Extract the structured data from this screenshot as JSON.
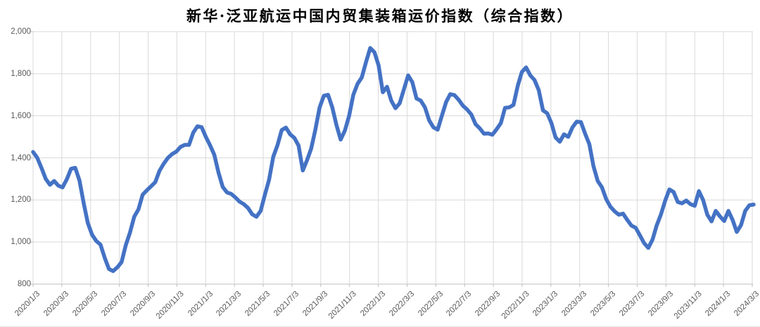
{
  "title": "新华·泛亚航运中国内贸集装箱运价指数（综合指数）",
  "colors": {
    "line": "#4472C4",
    "gridline": "#D9D9D9",
    "axis_line": "#BFBFBF",
    "tick_label": "#595959",
    "title_color": "#000000",
    "background": "#FFFFFF"
  },
  "chart_data": {
    "type": "line",
    "title": "新华·泛亚航运中国内贸集装箱运价指数（综合指数）",
    "xlabel": "",
    "ylabel": "",
    "ylim": [
      800,
      2000
    ],
    "y_ticks": [
      800,
      1000,
      1200,
      1400,
      1600,
      1800,
      2000
    ],
    "y_tick_labels": [
      "800",
      "1,000",
      "1,200",
      "1,400",
      "1,600",
      "1,800",
      "2,000"
    ],
    "x_tick_labels": [
      "2020/1/3",
      "2020/3/3",
      "2020/5/3",
      "2020/7/3",
      "2020/9/3",
      "2020/11/3",
      "2021/1/3",
      "2021/3/3",
      "2021/5/3",
      "2021/7/3",
      "2021/9/3",
      "2021/11/3",
      "2022/1/3",
      "2022/3/3",
      "2022/5/3",
      "2022/7/3",
      "2022/9/3",
      "2022/11/3",
      "2023/1/3",
      "2023/3/3",
      "2023/5/3",
      "2023/7/3",
      "2023/9/3",
      "2023/11/3",
      "2024/1/3",
      "2024/3/3"
    ],
    "grid": "both",
    "legend": "none",
    "series": [
      {
        "name": "综合指数",
        "color": "#4472C4",
        "sampling": "weekly index readings, 2020/1/3 through late 2024/3, uniformly spaced",
        "values": [
          1428,
          1400,
          1352,
          1300,
          1272,
          1290,
          1268,
          1260,
          1298,
          1348,
          1353,
          1293,
          1185,
          1090,
          1035,
          1005,
          988,
          925,
          872,
          862,
          880,
          905,
          985,
          1045,
          1120,
          1155,
          1225,
          1246,
          1265,
          1285,
          1338,
          1372,
          1400,
          1418,
          1430,
          1452,
          1462,
          1462,
          1520,
          1550,
          1546,
          1500,
          1460,
          1415,
          1330,
          1262,
          1236,
          1229,
          1212,
          1192,
          1180,
          1162,
          1132,
          1120,
          1148,
          1225,
          1295,
          1405,
          1460,
          1532,
          1544,
          1512,
          1495,
          1458,
          1340,
          1388,
          1444,
          1535,
          1640,
          1695,
          1700,
          1640,
          1555,
          1487,
          1530,
          1600,
          1700,
          1752,
          1782,
          1855,
          1922,
          1902,
          1840,
          1712,
          1738,
          1672,
          1636,
          1660,
          1726,
          1792,
          1760,
          1682,
          1672,
          1640,
          1578,
          1545,
          1534,
          1600,
          1665,
          1703,
          1698,
          1676,
          1648,
          1630,
          1606,
          1560,
          1540,
          1515,
          1516,
          1510,
          1536,
          1565,
          1638,
          1640,
          1652,
          1742,
          1808,
          1830,
          1792,
          1770,
          1722,
          1626,
          1612,
          1565,
          1497,
          1477,
          1512,
          1500,
          1545,
          1572,
          1570,
          1515,
          1465,
          1360,
          1290,
          1260,
          1204,
          1168,
          1146,
          1130,
          1135,
          1105,
          1078,
          1068,
          1032,
          995,
          972,
          1012,
          1080,
          1132,
          1196,
          1250,
          1238,
          1190,
          1184,
          1197,
          1180,
          1172,
          1242,
          1200,
          1130,
          1098,
          1148,
          1122,
          1100,
          1148,
          1105,
          1048,
          1080,
          1148,
          1175,
          1178
        ]
      }
    ]
  }
}
